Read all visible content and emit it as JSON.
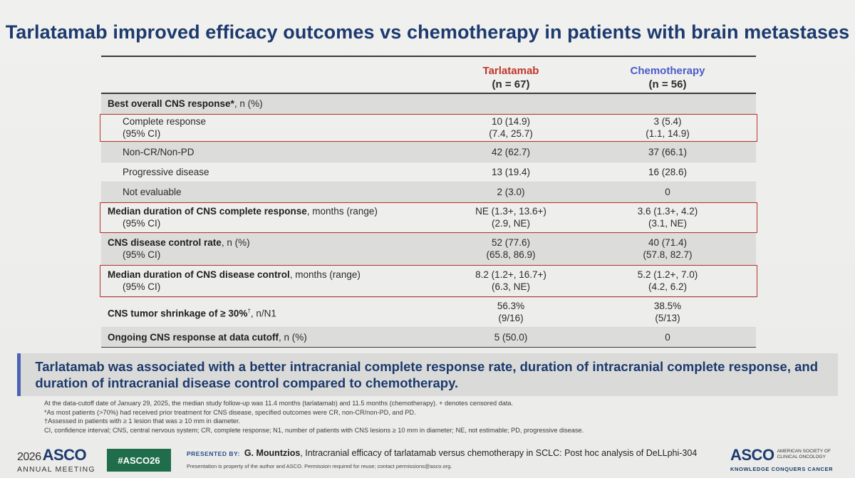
{
  "title": "Tarlatamab improved efficacy outcomes vs chemotherapy in patients with brain metastases",
  "columns": {
    "tarlatamab_name": "Tarlatamab",
    "tarlatamab_n": "(n = 67)",
    "chemo_name": "Chemotherapy",
    "chemo_n": "(n = 56)"
  },
  "rows": {
    "r0": {
      "label_b": "Best overall CNS response*",
      "label_r": ", n (%)"
    },
    "r1": {
      "label1": "Complete response",
      "label2": "(95% CI)",
      "t1": "10 (14.9)",
      "t2": "(7.4, 25.7)",
      "c1": "3 (5.4)",
      "c2": "(1.1, 14.9)"
    },
    "r2": {
      "label": "Non-CR/Non-PD",
      "t": "42 (62.7)",
      "c": "37 (66.1)"
    },
    "r3": {
      "label": "Progressive disease",
      "t": "13 (19.4)",
      "c": "16 (28.6)"
    },
    "r4": {
      "label": "Not evaluable",
      "t": "2 (3.0)",
      "c": "0"
    },
    "r5": {
      "label_b": "Median duration of CNS complete response",
      "label_r": ", months (range)",
      "label2": "(95% CI)",
      "t1": "NE (1.3+, 13.6+)",
      "t2": "(2.9, NE)",
      "c1": "3.6 (1.3+, 4.2)",
      "c2": "(3.1, NE)"
    },
    "r6": {
      "label_b": "CNS disease control rate",
      "label_r": ", n (%)",
      "label2": "(95% CI)",
      "t1": "52 (77.6)",
      "t2": "(65.8, 86.9)",
      "c1": "40 (71.4)",
      "c2": "(57.8, 82.7)"
    },
    "r7": {
      "label_b": "Median duration of CNS disease control",
      "label_r": ", months (range)",
      "label2": "(95% CI)",
      "t1": "8.2 (1.2+, 16.7+)",
      "t2": "(6.3, NE)",
      "c1": "5.2 (1.2+, 7.0)",
      "c2": "(4.2, 6.2)"
    },
    "r8": {
      "label_b": "CNS tumor shrinkage of ≥ 30%",
      "label_sup": "†",
      "label_r": ", n/N1",
      "t1": "56.3%",
      "t2": "(9/16)",
      "c1": "38.5%",
      "c2": "(5/13)"
    },
    "r9": {
      "label_b": "Ongoing CNS response at data cutoff",
      "label_r": ", n (%)",
      "t": "5 (50.0)",
      "c": "0"
    }
  },
  "callout": "Tarlatamab was associated with a better intracranial complete response rate, duration of intracranial complete response, and duration of intracranial disease control compared to chemotherapy.",
  "footnotes": {
    "f1": "At the data-cutoff date of January 29, 2025, the median study follow-up was 11.4 months (tarlatamab) and 11.5 months (chemotherapy). + denotes censored data.",
    "f2": "*As most patients (>70%) had received prior treatment for CNS disease, specified outcomes were CR, non-CR/non-PD, and PD.",
    "f3": "†Assessed in patients with ≥ 1 lesion that was ≥ 10 mm in diameter.",
    "f4": "CI, confidence interval; CNS, central nervous system; CR, complete response; N1, number of patients with CNS lesions ≥ 10 mm in diameter; NE, not estimable; PD, progressive disease."
  },
  "footer": {
    "year": "2026",
    "asco": "ASCO",
    "annual_meeting": "ANNUAL MEETING",
    "hashtag": "#ASCO26",
    "presented_by": "PRESENTED BY:",
    "presenter": "G. Mountzios",
    "presentation_title": ", Intracranial efficacy of tarlatamab versus chemotherapy in SCLC: Post hoc analysis of DeLLphi-304",
    "property_note": "Presentation is property of the author and ASCO. Permission required for reuse; contact permissions@asco.org.",
    "asco_logo": "ASCO",
    "society": "AMERICAN SOCIETY OF CLINICAL ONCOLOGY",
    "tagline": "KNOWLEDGE CONQUERS CANCER"
  },
  "colors": {
    "title": "#1c3a6e",
    "tarlatamab": "#c0352b",
    "chemotherapy": "#4a5bc9",
    "highlight_box": "#b8342c",
    "callout_bar": "#4b63b5",
    "hashtag_bg": "#1f6d4a"
  }
}
